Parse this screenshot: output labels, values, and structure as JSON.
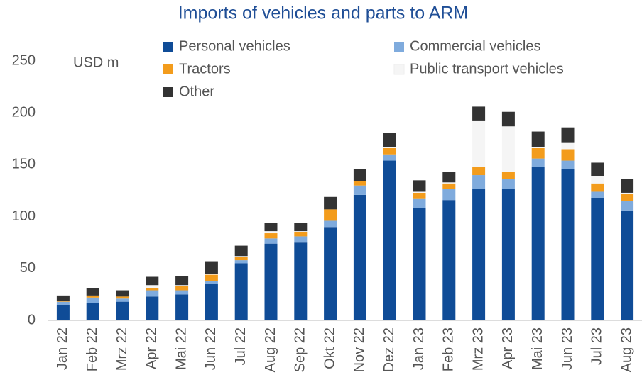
{
  "chart_data": {
    "type": "stacked_bar",
    "title": "Imports of vehicles and parts to ARM",
    "annotation": "USD m",
    "categories": [
      "Jan 22",
      "Feb 22",
      "Mrz 22",
      "Apr 22",
      "Mai 22",
      "Jun 22",
      "Jul 22",
      "Aug 22",
      "Sep 22",
      "Okt 22",
      "Nov 22",
      "Dez 22",
      "Jan 23",
      "Feb 23",
      "Mrz 23",
      "Apr 23",
      "Mai 23",
      "Jun 23",
      "Jul 23",
      "Aug 23"
    ],
    "series": [
      {
        "name": "Personal vehicles",
        "color": "#0f4c97",
        "values": [
          15,
          17,
          18,
          23,
          25,
          35,
          55,
          74,
          75,
          90,
          121,
          154,
          108,
          116,
          127,
          127,
          148,
          146,
          118,
          106
        ]
      },
      {
        "name": "Commercial vehicles",
        "color": "#7fabdd",
        "values": [
          3,
          5,
          3,
          6,
          4,
          3,
          3,
          5,
          6,
          6,
          9,
          6,
          9,
          11,
          13,
          9,
          8,
          8,
          6,
          9
        ]
      },
      {
        "name": "Tractors",
        "color": "#f39c1c",
        "values": [
          1,
          2,
          2,
          2,
          4,
          6,
          3,
          5,
          4,
          11,
          4,
          6,
          6,
          5,
          8,
          7,
          10,
          11,
          8,
          7
        ]
      },
      {
        "name": "Public transport vehicles",
        "color": "#f5f5f5",
        "values": [
          0,
          0,
          0,
          3,
          1,
          1,
          1,
          2,
          1,
          0,
          0,
          1,
          1,
          1,
          44,
          44,
          1,
          6,
          7,
          1
        ]
      },
      {
        "name": "Other",
        "color": "#333333",
        "values": [
          5,
          7,
          6,
          8,
          9,
          12,
          10,
          8,
          8,
          12,
          12,
          14,
          11,
          10,
          14,
          14,
          15,
          15,
          13,
          13
        ]
      }
    ],
    "ylim": [
      0,
      250
    ],
    "yticks": [
      0,
      50,
      100,
      150,
      200,
      250
    ],
    "grid": false
  }
}
